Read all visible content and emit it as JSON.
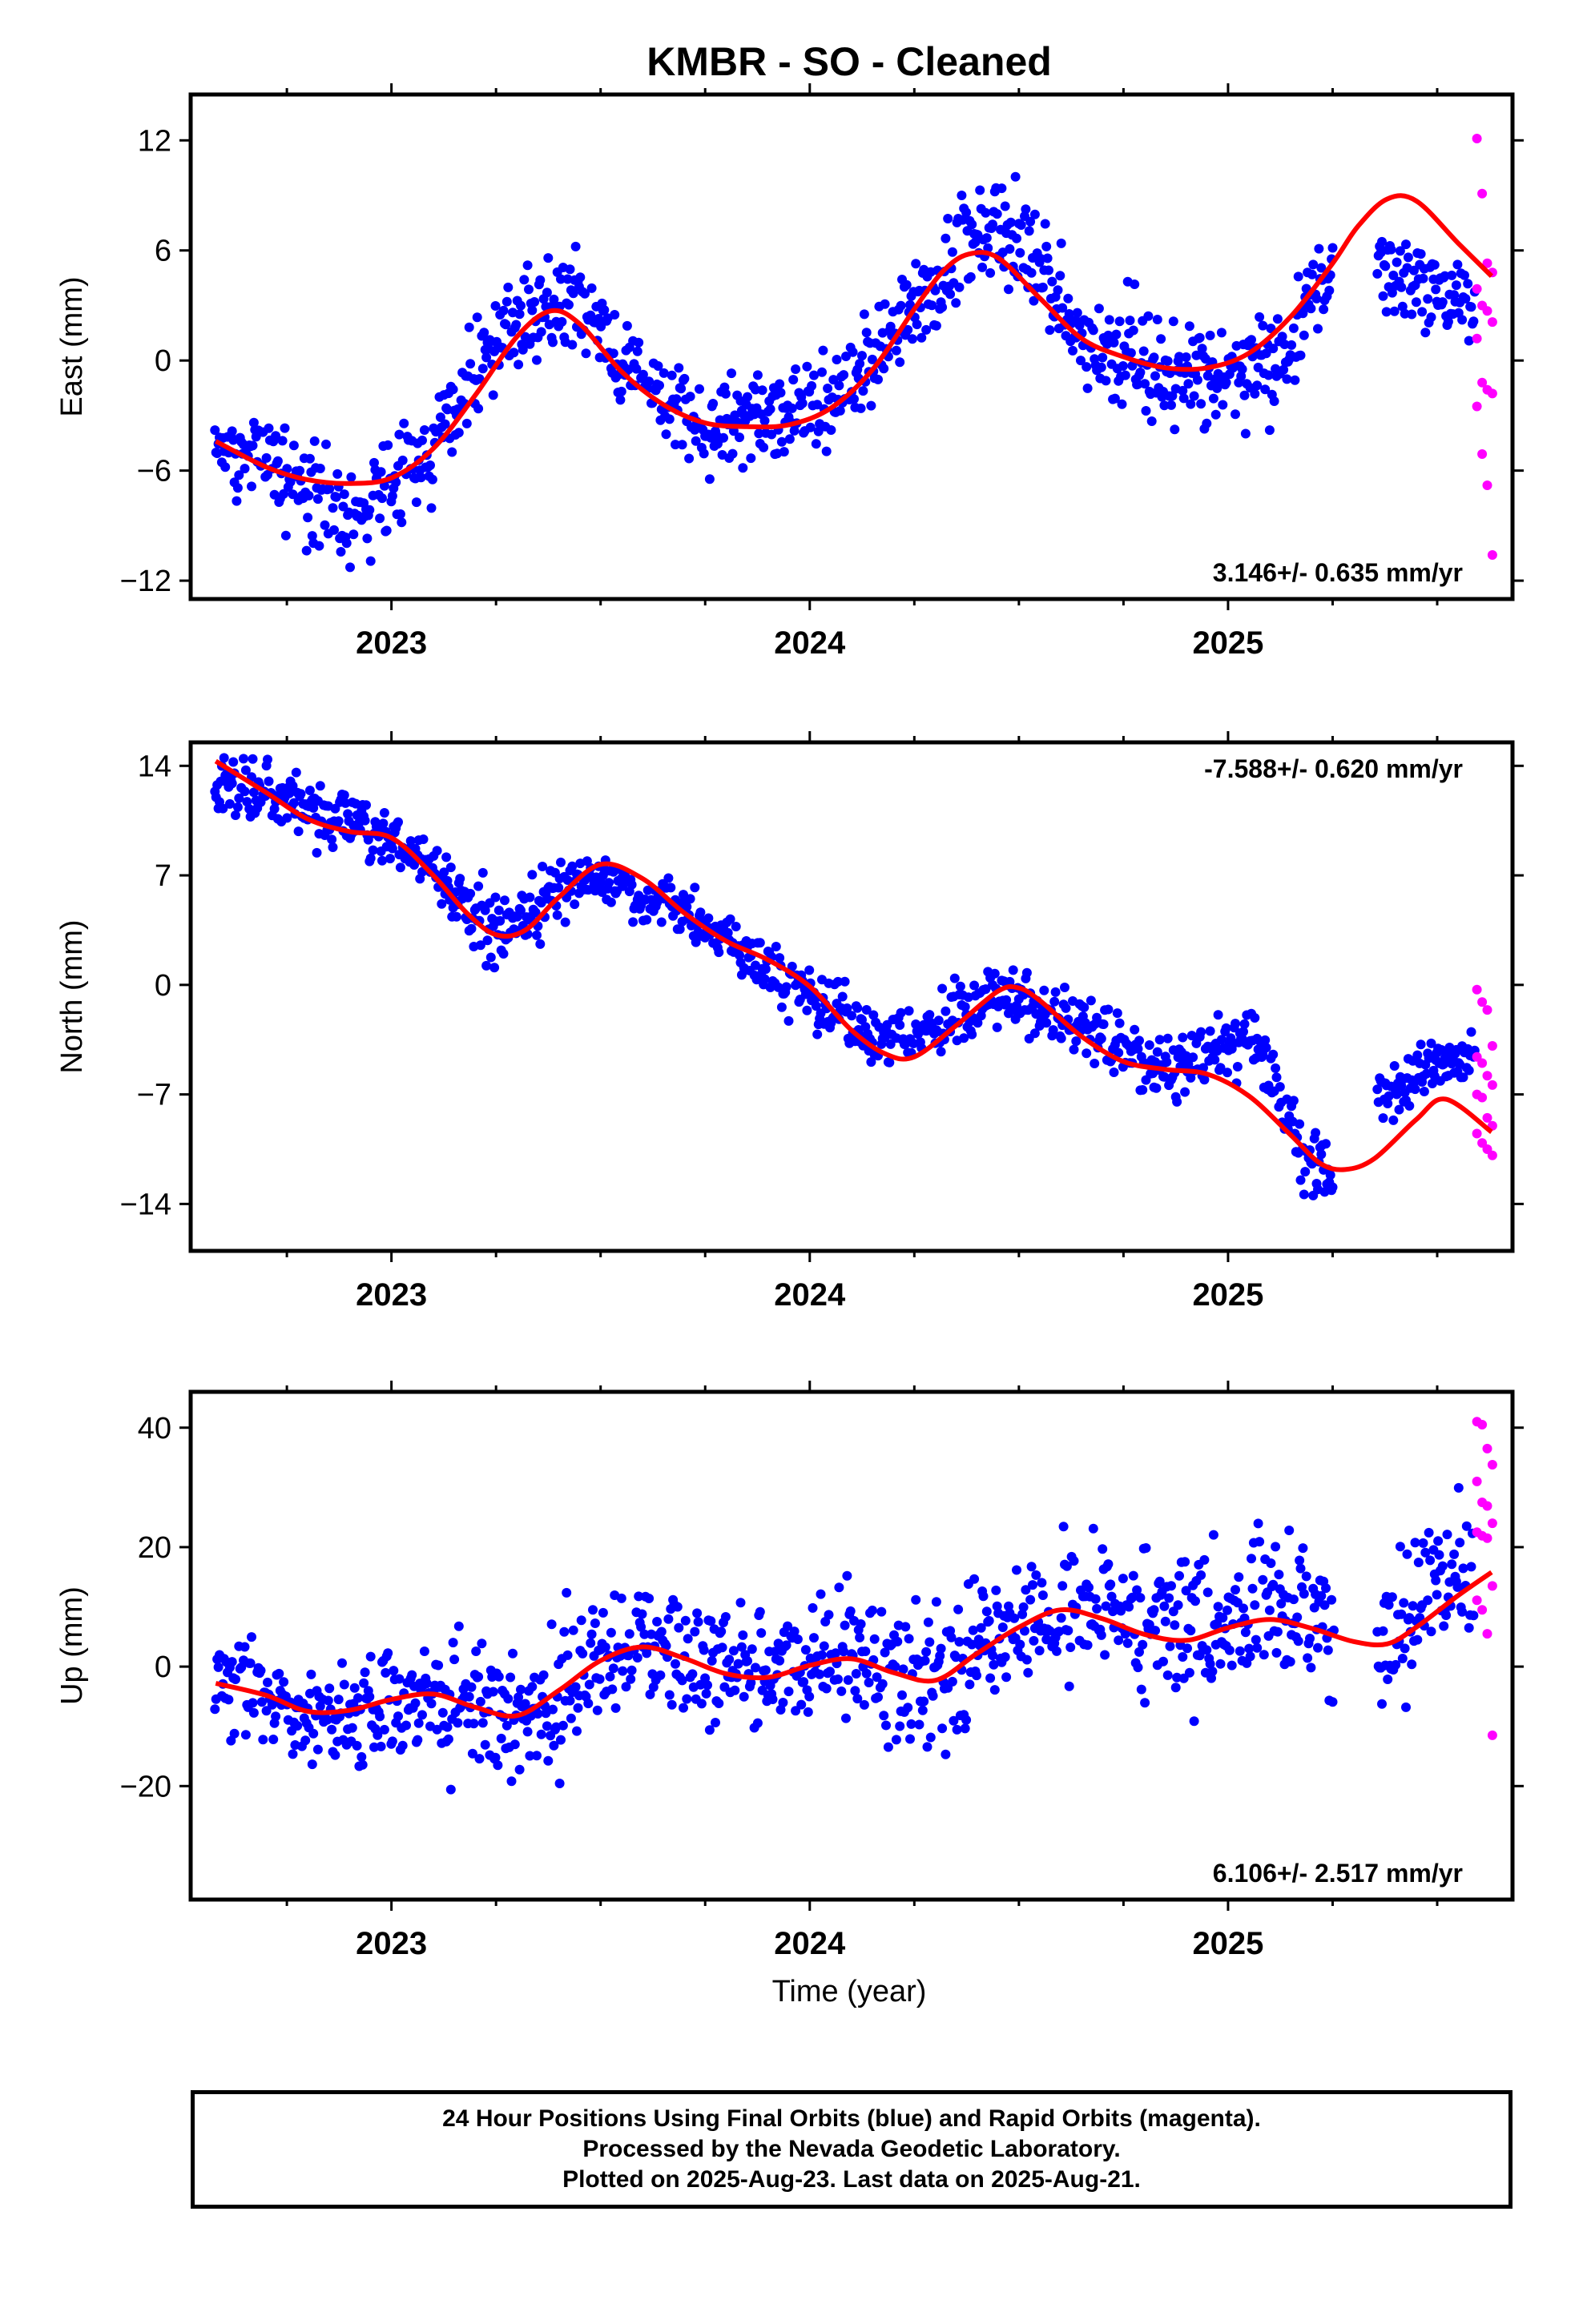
{
  "chart_data": {
    "type": "scatter",
    "title": "KMBR  - SO - Cleaned",
    "xlabel": "Time (year)",
    "xlim": [
      2022.52,
      2025.68
    ],
    "x_ticks": [
      2023,
      2024,
      2025
    ],
    "x_tick_labels": [
      "2023",
      "2024",
      "2025"
    ],
    "series_colors": {
      "final_orbits": "#0000ff",
      "rapid_orbits": "#ff00ff",
      "model_fit": "#ff0000"
    },
    "panels": [
      {
        "name": "east",
        "ylabel": "East (mm)",
        "ylim": [
          -13,
          14.5
        ],
        "y_ticks": [
          -12,
          -6,
          0,
          6,
          12
        ],
        "y_tick_labels": [
          "−12",
          "−6",
          "0",
          "6",
          "12"
        ],
        "rate_label": "3.146+/- 0.635 mm/yr",
        "rate_position": "bottom-right",
        "fit": {
          "x": [
            2022.58,
            2022.7,
            2022.8,
            2022.9,
            2023.0,
            2023.1,
            2023.2,
            2023.3,
            2023.38,
            2023.45,
            2023.55,
            2023.65,
            2023.75,
            2023.85,
            2023.95,
            2024.05,
            2024.15,
            2024.25,
            2024.32,
            2024.38,
            2024.45,
            2024.55,
            2024.65,
            2024.75,
            2024.85,
            2024.95,
            2025.05,
            2025.15,
            2025.25,
            2025.31,
            2025.38,
            2025.45,
            2025.55,
            2025.63
          ],
          "y": [
            -4.4,
            -5.8,
            -6.5,
            -6.7,
            -6.4,
            -4.8,
            -1.9,
            1.3,
            2.7,
            2.0,
            -0.6,
            -2.4,
            -3.4,
            -3.6,
            -3.5,
            -2.6,
            -0.5,
            2.8,
            4.9,
            5.8,
            5.6,
            3.4,
            1.2,
            0.2,
            -0.4,
            -0.4,
            0.4,
            2.4,
            5.3,
            7.3,
            8.8,
            8.7,
            6.4,
            4.6
          ]
        },
        "data": {
          "anchors_x": [
            2022.58,
            2022.7,
            2022.8,
            2022.9,
            2023.0,
            2023.1,
            2023.2,
            2023.3,
            2023.38,
            2023.45,
            2023.55,
            2023.65,
            2023.75,
            2023.85,
            2023.95,
            2024.05,
            2024.15,
            2024.25,
            2024.32,
            2024.38,
            2024.45,
            2024.55,
            2024.65,
            2024.75,
            2024.85,
            2024.95,
            2025.05,
            2025.15,
            2025.25,
            2025.31,
            2025.38,
            2025.45,
            2025.55,
            2025.63
          ],
          "anchors_y": [
            -4.4,
            -5.6,
            -7.0,
            -8.3,
            -6.8,
            -4.5,
            -0.6,
            2.0,
            2.8,
            3.5,
            0.0,
            -2.0,
            -3.5,
            -3.6,
            -2.9,
            -2.3,
            0.0,
            3.0,
            4.8,
            6.5,
            7.2,
            5.0,
            1.2,
            0.5,
            -1.0,
            -0.6,
            -0.9,
            0.8,
            5.3,
            6.8,
            4.8,
            4.2,
            3.2,
            2.5
          ],
          "anchors_spread": [
            1.4,
            1.6,
            1.8,
            1.9,
            1.8,
            1.8,
            1.9,
            1.7,
            1.7,
            1.8,
            1.8,
            1.6,
            1.6,
            1.6,
            1.7,
            1.7,
            1.8,
            1.9,
            2.0,
            2.3,
            2.2,
            2.0,
            2.0,
            2.1,
            2.1,
            1.9,
            2.3,
            2.5,
            2.0,
            1.0,
            2.0,
            1.5,
            1.4,
            1.2
          ],
          "gaps": [
            [
              2025.255,
              2025.355
            ]
          ],
          "rapid_x_range": [
            2025.595,
            2025.632
          ],
          "rapid_count": 16,
          "rapid_y": [
            12.1,
            9.1,
            5.3,
            4.8,
            3.9,
            3.0,
            2.7,
            2.1,
            1.2,
            -1.2,
            -1.6,
            -1.8,
            -2.5,
            -5.1,
            -6.8,
            -10.6
          ]
        }
      },
      {
        "name": "north",
        "ylabel": "North (mm)",
        "ylim": [
          -17,
          15.5
        ],
        "y_ticks": [
          -14,
          -7,
          0,
          7,
          14
        ],
        "y_tick_labels": [
          "−14",
          "−7",
          "0",
          "7",
          "14"
        ],
        "rate_label": "-7.588+/- 0.620 mm/yr",
        "rate_position": "top-right",
        "fit": {
          "x": [
            2022.58,
            2022.7,
            2022.8,
            2022.9,
            2023.0,
            2023.1,
            2023.18,
            2023.25,
            2023.32,
            2023.4,
            2023.5,
            2023.6,
            2023.7,
            2023.8,
            2023.9,
            2024.0,
            2024.1,
            2024.18,
            2024.25,
            2024.35,
            2024.45,
            2024.5,
            2024.55,
            2024.65,
            2024.75,
            2024.85,
            2024.95,
            2025.05,
            2025.15,
            2025.22,
            2025.28,
            2025.35,
            2025.45,
            2025.52,
            2025.63
          ],
          "y": [
            14.3,
            12.3,
            10.6,
            9.8,
            9.4,
            7.0,
            4.6,
            3.2,
            3.5,
            5.6,
            7.7,
            6.8,
            4.6,
            2.8,
            1.6,
            -0.1,
            -2.9,
            -4.4,
            -4.6,
            -2.6,
            -0.4,
            -0.2,
            -1.0,
            -3.3,
            -4.9,
            -5.4,
            -5.7,
            -7.1,
            -9.6,
            -11.4,
            -11.8,
            -11.1,
            -8.6,
            -7.3,
            -9.4
          ]
        },
        "data": {
          "anchors_x": [
            2022.58,
            2022.7,
            2022.8,
            2022.9,
            2023.0,
            2023.1,
            2023.18,
            2023.25,
            2023.32,
            2023.4,
            2023.5,
            2023.6,
            2023.7,
            2023.8,
            2023.9,
            2024.0,
            2024.1,
            2024.18,
            2024.25,
            2024.35,
            2024.45,
            2024.55,
            2024.65,
            2024.75,
            2024.85,
            2024.95,
            2025.05,
            2025.12,
            2025.18,
            2025.25,
            2025.38,
            2025.45,
            2025.52,
            2025.63
          ],
          "anchors_y": [
            12.8,
            12.4,
            11.4,
            10.4,
            9.5,
            7.6,
            4.9,
            3.1,
            4.0,
            6.0,
            7.1,
            5.7,
            4.5,
            3.0,
            1.1,
            -0.8,
            -2.5,
            -3.6,
            -3.5,
            -2.0,
            -0.4,
            -1.7,
            -2.4,
            -4.1,
            -5.7,
            -4.3,
            -3.1,
            -6.0,
            -11.5,
            -12.0,
            -6.8,
            -5.5,
            -4.9,
            -4.5
          ],
          "anchors_spread": [
            1.3,
            1.4,
            1.3,
            1.3,
            1.3,
            1.3,
            1.6,
            1.5,
            1.4,
            1.3,
            1.1,
            1.1,
            1.2,
            1.2,
            1.3,
            1.3,
            1.3,
            1.3,
            1.3,
            1.3,
            1.4,
            1.4,
            1.4,
            1.4,
            1.5,
            1.5,
            1.6,
            2.0,
            1.6,
            1.6,
            1.3,
            1.5,
            1.4,
            1.3
          ],
          "gaps": [
            [
              2025.255,
              2025.355
            ]
          ],
          "rapid_x_range": [
            2025.595,
            2025.632
          ],
          "rapid_count": 16,
          "rapid_y": [
            -0.3,
            -1.1,
            -1.6,
            -3.9,
            -4.6,
            -5.0,
            -5.8,
            -6.4,
            -7.0,
            -7.2,
            -8.5,
            -9.0,
            -9.5,
            -10.1,
            -10.5,
            -10.9
          ]
        }
      },
      {
        "name": "up",
        "ylabel": "Up (mm)",
        "ylim": [
          -39,
          46
        ],
        "y_ticks": [
          -20,
          0,
          20,
          40
        ],
        "y_tick_labels": [
          "−20",
          "0",
          "20",
          "40"
        ],
        "rate_label": "6.106+/- 2.517 mm/yr",
        "rate_position": "bottom-right",
        "fit": {
          "x": [
            2022.58,
            2022.7,
            2022.8,
            2022.9,
            2023.0,
            2023.1,
            2023.2,
            2023.3,
            2023.4,
            2023.5,
            2023.6,
            2023.7,
            2023.8,
            2023.9,
            2024.0,
            2024.1,
            2024.2,
            2024.3,
            2024.4,
            2024.5,
            2024.6,
            2024.7,
            2024.8,
            2024.9,
            2025.0,
            2025.1,
            2025.2,
            2025.3,
            2025.38,
            2025.45,
            2025.55,
            2025.63
          ],
          "y": [
            -2.8,
            -4.8,
            -7.5,
            -7.3,
            -5.5,
            -4.6,
            -6.8,
            -8.2,
            -4.0,
            1.0,
            3.3,
            1.4,
            -1.2,
            -1.8,
            0.2,
            1.3,
            -1.0,
            -2.3,
            2.2,
            6.6,
            9.5,
            8.0,
            5.4,
            4.4,
            6.5,
            7.9,
            6.4,
            4.2,
            3.8,
            6.6,
            11.9,
            15.8
          ]
        },
        "data": {
          "anchors_x": [
            2022.58,
            2022.7,
            2022.8,
            2022.9,
            2023.0,
            2023.1,
            2023.2,
            2023.3,
            2023.4,
            2023.5,
            2023.6,
            2023.7,
            2023.8,
            2023.9,
            2024.0,
            2024.1,
            2024.2,
            2024.3,
            2024.4,
            2024.5,
            2024.6,
            2024.7,
            2024.8,
            2024.9,
            2025.0,
            2025.1,
            2025.2,
            2025.3,
            2025.38,
            2025.45,
            2025.55,
            2025.63
          ],
          "anchors_y": [
            -1.0,
            -4.5,
            -8.0,
            -8.0,
            -5.5,
            -4.0,
            -7.0,
            -9.0,
            -4.0,
            2.0,
            3.5,
            2.5,
            -1.0,
            -1.5,
            0.5,
            2.0,
            -1.5,
            -3.0,
            3.0,
            7.0,
            10.0,
            9.0,
            6.0,
            5.0,
            7.0,
            10.0,
            8.0,
            5.0,
            4.0,
            10.0,
            14.0,
            17.0
          ],
          "anchors_spread": [
            5.5,
            6.0,
            6.5,
            6.5,
            7.0,
            7.0,
            7.0,
            8.0,
            8.0,
            7.5,
            7.0,
            7.0,
            7.5,
            7.5,
            7.5,
            7.5,
            8.0,
            9.0,
            8.0,
            7.5,
            8.0,
            8.5,
            8.0,
            8.0,
            8.5,
            9.5,
            9.5,
            8.0,
            8.0,
            9.0,
            9.0,
            8.0
          ],
          "gaps": [
            [
              2025.255,
              2025.355
            ]
          ],
          "rapid_x_range": [
            2025.595,
            2025.632
          ],
          "rapid_count": 16,
          "rapid_y": [
            41.0,
            40.5,
            36.5,
            33.8,
            31.0,
            27.5,
            26.9,
            24.0,
            22.5,
            21.9,
            21.5,
            13.5,
            11.1,
            9.5,
            5.5,
            -11.5
          ]
        }
      }
    ]
  },
  "footer": {
    "line1": "24 Hour Positions Using Final Orbits (blue) and Rapid Orbits (magenta).",
    "line2": "Processed by the Nevada Geodetic Laboratory.",
    "line3": "Plotted on 2025-Aug-23. Last data on 2025-Aug-21."
  }
}
